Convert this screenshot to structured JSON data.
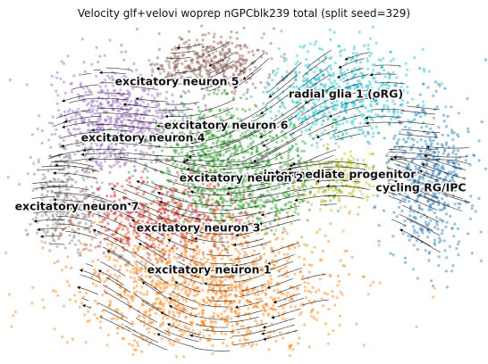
{
  "title": "Velocity glf+velovi woprep nGPCblk239 total (split seed=329)",
  "chart_data": {
    "type": "scatter",
    "title": "Velocity glf+velovi woprep nGPCblk239 total (split seed=329)",
    "xlabel": "",
    "ylabel": "",
    "axes_visible": false,
    "grid": false,
    "overlay": "velocity streamlines (black arrows)",
    "clusters": [
      {
        "label": "excitatory neuron 5",
        "color": "#8c564b"
      },
      {
        "label": "radial glia 1 (oRG)",
        "color": "#17becf"
      },
      {
        "label": "excitatory neuron 6",
        "color": "#2ca02c"
      },
      {
        "label": "excitatory neuron 4",
        "color": "#9467bd"
      },
      {
        "label": "intermediate progenitor",
        "color": "#bcbd22"
      },
      {
        "label": "excitatory neuron 2",
        "color": "#2ca02c"
      },
      {
        "label": "cycling RG/IPC",
        "color": "#1f77b4"
      },
      {
        "label": "excitatory neuron 7",
        "color": "#7f7f7f"
      },
      {
        "label": "excitatory neuron 3",
        "color": "#d62728"
      },
      {
        "label": "excitatory neuron 1",
        "color": "#ff7f0e"
      }
    ]
  }
}
